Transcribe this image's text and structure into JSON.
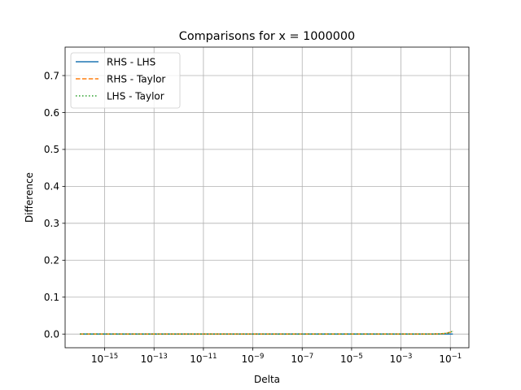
{
  "chart_data": {
    "type": "line",
    "title": "Comparisons for x = 1000000",
    "xlabel": "Delta",
    "ylabel": "Difference",
    "xscale": "log",
    "xlim_exp": [
      -16.6,
      -0.25
    ],
    "ylim": [
      -0.037,
      0.777
    ],
    "grid": true,
    "legend_position": "top-left",
    "x_ticks": [
      {
        "base": "10",
        "exp": "−15",
        "value_exp": -15
      },
      {
        "base": "10",
        "exp": "−13",
        "value_exp": -13
      },
      {
        "base": "10",
        "exp": "−11",
        "value_exp": -11
      },
      {
        "base": "10",
        "exp": "−9",
        "value_exp": -9
      },
      {
        "base": "10",
        "exp": "−7",
        "value_exp": -7
      },
      {
        "base": "10",
        "exp": "−5",
        "value_exp": -5
      },
      {
        "base": "10",
        "exp": "−3",
        "value_exp": -3
      },
      {
        "base": "10",
        "exp": "−1",
        "value_exp": -1
      }
    ],
    "y_ticks": [
      "0.0",
      "0.1",
      "0.2",
      "0.3",
      "0.4",
      "0.5",
      "0.6",
      "0.7"
    ],
    "y_tick_values": [
      0.0,
      0.1,
      0.2,
      0.3,
      0.4,
      0.5,
      0.6,
      0.7
    ],
    "series": [
      {
        "name": "RHS - LHS",
        "color": "#1f77b4",
        "style": "solid",
        "formula": "zero",
        "x_exp_range": [
          -16,
          -0.9
        ]
      },
      {
        "name": "RHS - Taylor",
        "color": "#ff7f0e",
        "style": "dashed",
        "formula": "exp_minus_one_minus_delta",
        "x_exp_range": [
          -16,
          -0.9
        ]
      },
      {
        "name": "LHS - Taylor",
        "color": "#2ca02c",
        "style": "dotted",
        "formula": "exp_minus_one_minus_delta",
        "x_exp_range": [
          -16,
          -0.9
        ]
      }
    ]
  }
}
